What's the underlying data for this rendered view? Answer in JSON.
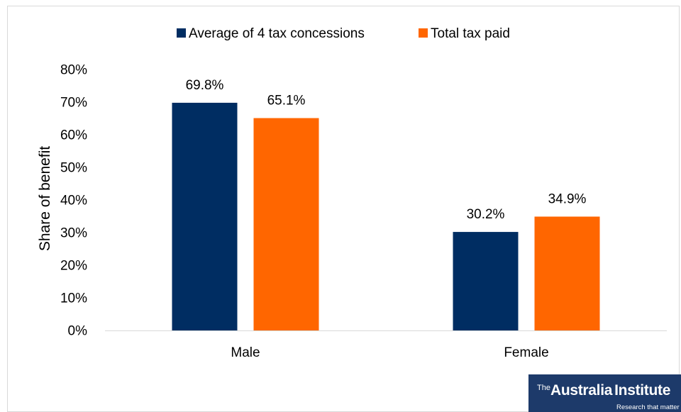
{
  "chart_data": {
    "type": "bar",
    "categories": [
      "Male",
      "Female"
    ],
    "series": [
      {
        "name": "Average of 4 tax concessions",
        "values": [
          69.8,
          30.2
        ],
        "labels": [
          "69.8%",
          "30.2%"
        ],
        "color": "#002D62"
      },
      {
        "name": "Total tax paid",
        "values": [
          65.1,
          34.9
        ],
        "labels": [
          "65.1%",
          "34.9%"
        ],
        "color": "#FF6600"
      }
    ],
    "xlabel": "",
    "ylabel": "Share of benefit",
    "ylim": [
      0,
      80
    ],
    "yticks": [
      0,
      10,
      20,
      30,
      40,
      50,
      60,
      70,
      80
    ],
    "yticklabels": [
      "0%",
      "10%",
      "20%",
      "30%",
      "40%",
      "50%",
      "60%",
      "70%",
      "80%"
    ],
    "grid": false,
    "legend": "top-center"
  },
  "logo": {
    "prefix": "The",
    "name_part1": "Australia",
    "name_part2": "Institute",
    "tagline": "Research that matter"
  },
  "colors": {
    "frame": "#D9D9D9",
    "axis_line": "#D9D9D9",
    "logo_background": "#1D3A6A"
  }
}
